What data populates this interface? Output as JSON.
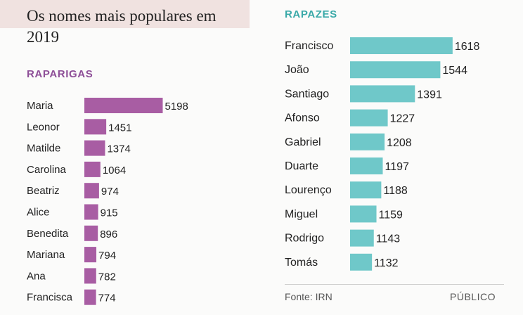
{
  "colors": {
    "girls": "#a85da3",
    "boys": "#6fc8c9",
    "girls_title": "#8e4f98",
    "boys_title": "#3aa9a8"
  },
  "title": "Os nomes mais populares em 2019",
  "footer": {
    "source": "Fonte: IRN",
    "brand": "PÚBLICO"
  },
  "chart_data": [
    {
      "type": "bar",
      "orientation": "horizontal",
      "title": "RAPARIGAS",
      "categories": [
        "Maria",
        "Leonor",
        "Matilde",
        "Carolina",
        "Beatriz",
        "Alice",
        "Benedita",
        "Mariana",
        "Ana",
        "Francisca"
      ],
      "values": [
        5198,
        1451,
        1374,
        1064,
        974,
        915,
        896,
        794,
        782,
        774
      ],
      "color": "#a85da3"
    },
    {
      "type": "bar",
      "orientation": "horizontal",
      "title": "RAPAZES",
      "categories": [
        "Francisco",
        "João",
        "Santiago",
        "Afonso",
        "Gabriel",
        "Duarte",
        "Lourenço",
        "Miguel",
        "Rodrigo",
        "Tomás"
      ],
      "values": [
        1618,
        1544,
        1391,
        1227,
        1208,
        1197,
        1188,
        1159,
        1143,
        1132
      ],
      "color": "#6fc8c9"
    }
  ]
}
